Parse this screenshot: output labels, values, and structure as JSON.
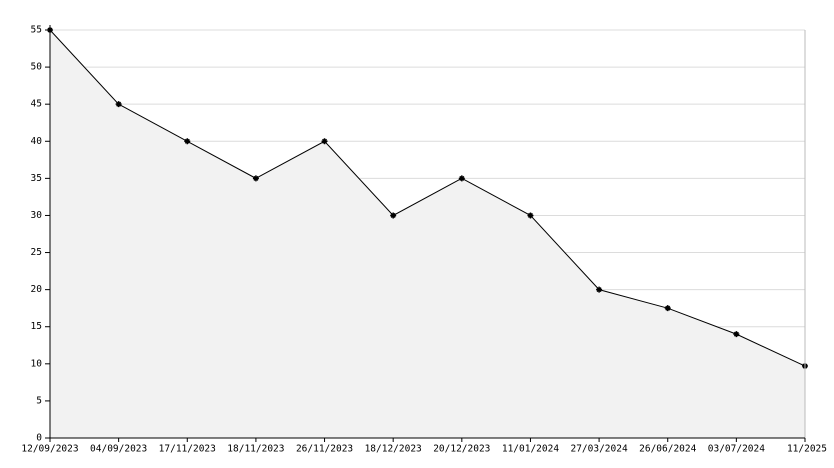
{
  "chart_data": {
    "type": "area",
    "categories": [
      "12/09/2023",
      "04/09/2023",
      "17/11/2023",
      "18/11/2023",
      "26/11/2023",
      "18/12/2023",
      "20/12/2023",
      "11/01/2024",
      "27/03/2024",
      "26/06/2024",
      "03/07/2024",
      "11/2025"
    ],
    "values": [
      55,
      45,
      40,
      35,
      40,
      30,
      35,
      30,
      20,
      17.5,
      14,
      9.7
    ],
    "color": "#000000",
    "fill": "#f2f2f2",
    "ylim": [
      0,
      55
    ],
    "yticks": [
      0,
      5,
      10,
      15,
      20,
      25,
      30,
      35,
      40,
      45,
      50,
      55
    ],
    "grid": true
  }
}
